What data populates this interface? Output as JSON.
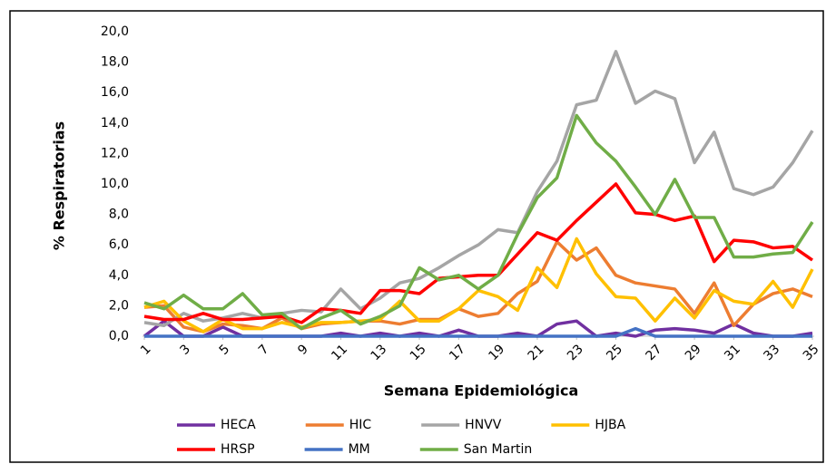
{
  "chart_data": {
    "type": "line",
    "y_label": "% Respiratorias",
    "x_label": "Semana Epidemiológica",
    "x": [
      1,
      2,
      3,
      4,
      5,
      6,
      7,
      8,
      9,
      10,
      11,
      12,
      13,
      14,
      15,
      16,
      17,
      18,
      19,
      20,
      21,
      22,
      23,
      24,
      25,
      26,
      27,
      28,
      29,
      30,
      31,
      32,
      33,
      34,
      35
    ],
    "xlim": [
      1,
      35
    ],
    "xticks": [
      1,
      3,
      5,
      7,
      9,
      11,
      13,
      15,
      17,
      19,
      21,
      23,
      25,
      27,
      29,
      31,
      33,
      35
    ],
    "ylim": [
      0,
      20
    ],
    "yticks": [
      {
        "value": 0,
        "label": "0,0"
      },
      {
        "value": 2,
        "label": "2,0"
      },
      {
        "value": 4,
        "label": "4,0"
      },
      {
        "value": 6,
        "label": "6,0"
      },
      {
        "value": 8,
        "label": "8,0"
      },
      {
        "value": 10,
        "label": "10,0"
      },
      {
        "value": 12,
        "label": "12,0"
      },
      {
        "value": 14,
        "label": "14,0"
      },
      {
        "value": 16,
        "label": "16,0"
      },
      {
        "value": 18,
        "label": "18,0"
      },
      {
        "value": 20,
        "label": "20,0"
      }
    ],
    "grid": false,
    "legend": "bottom",
    "series": [
      {
        "name": "HECA",
        "color": "#7030a0",
        "values": [
          0,
          1.0,
          0,
          0,
          0.6,
          0,
          0,
          0,
          0,
          0,
          0.2,
          0,
          0.2,
          0,
          0.2,
          0,
          0.4,
          0,
          0,
          0.2,
          0,
          0.8,
          1.0,
          0,
          0.2,
          0,
          0.4,
          0.5,
          0.4,
          0.2,
          0.8,
          0.2,
          0,
          0,
          0.2
        ]
      },
      {
        "name": "HIC",
        "color": "#ed7d31",
        "values": [
          1.9,
          2.0,
          0.6,
          0.3,
          0.8,
          0.7,
          0.5,
          1.2,
          0.5,
          0.8,
          0.9,
          1.0,
          1.0,
          0.8,
          1.1,
          1.1,
          1.8,
          1.3,
          1.5,
          2.8,
          3.6,
          6.2,
          5.0,
          5.8,
          4.0,
          3.5,
          3.3,
          3.1,
          1.5,
          3.5,
          0.7,
          2.1,
          2.8,
          3.1,
          2.6
        ]
      },
      {
        "name": "HNVV",
        "color": "#a5a5a5",
        "values": [
          0.9,
          0.7,
          1.5,
          1.0,
          1.2,
          1.5,
          1.2,
          1.5,
          1.7,
          1.6,
          3.1,
          1.8,
          2.5,
          3.5,
          3.8,
          4.5,
          5.3,
          6.0,
          7.0,
          6.8,
          9.5,
          11.5,
          15.2,
          15.5,
          18.7,
          15.3,
          16.1,
          15.6,
          11.4,
          13.4,
          9.7,
          9.3,
          9.8,
          11.4,
          13.5
        ]
      },
      {
        "name": "HJBA",
        "color": "#ffc000",
        "values": [
          1.9,
          2.3,
          1.0,
          0.3,
          1.1,
          0.5,
          0.5,
          0.9,
          0.6,
          0.9,
          0.9,
          1.0,
          1.1,
          2.3,
          1.0,
          1.0,
          1.8,
          3.0,
          2.6,
          1.7,
          4.5,
          3.2,
          6.4,
          4.1,
          2.6,
          2.5,
          1.0,
          2.5,
          1.2,
          3.0,
          2.3,
          2.1,
          3.6,
          1.9,
          4.4
        ]
      },
      {
        "name": "HRSP",
        "color": "#ff0000",
        "values": [
          1.3,
          1.1,
          1.1,
          1.5,
          1.1,
          1.1,
          1.2,
          1.3,
          0.9,
          1.8,
          1.7,
          1.5,
          3.0,
          3.0,
          2.8,
          3.8,
          3.9,
          4.0,
          4.0,
          5.4,
          6.8,
          6.3,
          7.6,
          8.8,
          10.0,
          8.1,
          8.0,
          7.6,
          7.9,
          4.9,
          6.3,
          6.2,
          5.8,
          5.9,
          5.0
        ]
      },
      {
        "name": "MM",
        "color": "#4472c4",
        "values": [
          0,
          0,
          0,
          0,
          0,
          0,
          0,
          0,
          0,
          0,
          0,
          0,
          0,
          0,
          0,
          0,
          0,
          0,
          0,
          0,
          0,
          0,
          0,
          0,
          0,
          0.5,
          0,
          0,
          0,
          0,
          0,
          0,
          0,
          0,
          0
        ]
      },
      {
        "name": "San Martin",
        "color": "#70ad47",
        "values": [
          2.2,
          1.8,
          2.7,
          1.8,
          1.8,
          2.8,
          1.4,
          1.5,
          0.5,
          1.2,
          1.7,
          0.8,
          1.3,
          2.0,
          4.5,
          3.7,
          4.0,
          3.1,
          4.0,
          6.7,
          9.1,
          10.4,
          14.5,
          12.7,
          11.5,
          9.8,
          8.0,
          10.3,
          7.8,
          7.8,
          5.2,
          5.2,
          5.4,
          5.5,
          7.5
        ]
      }
    ]
  }
}
